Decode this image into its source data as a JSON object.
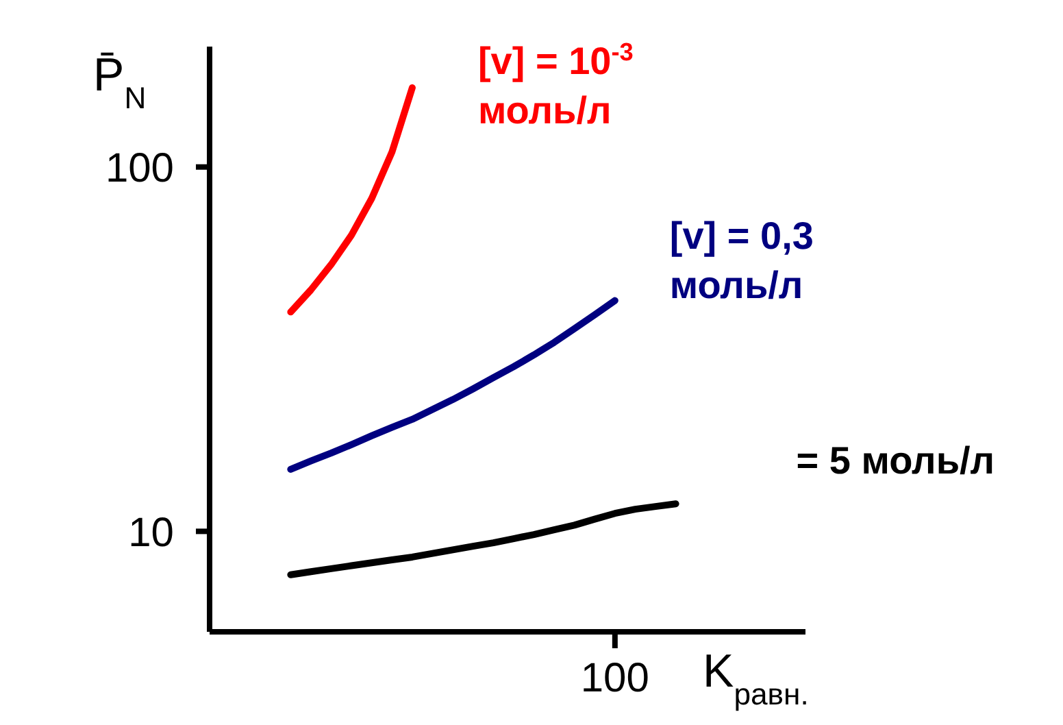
{
  "chart_data": {
    "type": "line",
    "log": "y",
    "xlabel": "K$_{равн.}$",
    "ylabel": "P̄$_{N}$",
    "categories": [
      null,
      null,
      null,
      null,
      null,
      null,
      null,
      null,
      null,
      null,
      null,
      null,
      null,
      null,
      null,
      null,
      null,
      null,
      null,
      null,
      "100",
      null,
      null,
      null,
      null,
      null,
      null,
      null,
      null,
      null
    ],
    "ylim": [
      5.3,
      214
    ],
    "yticks": [
      10,
      100
    ],
    "marker": "none",
    "line_style": "solid",
    "series": [
      {
        "name": "[v] = 10$^{-3}$ моль/л",
        "color": "#ff0000",
        "values": [
          null,
          null,
          null,
          null,
          40,
          46,
          54,
          65,
          82,
          110,
          165,
          null,
          null,
          null,
          null,
          null,
          null,
          null,
          null,
          null,
          null,
          null,
          null,
          null,
          null,
          null,
          null,
          null,
          null,
          null
        ]
      },
      {
        "name": "[v] = 0,3 моль/л",
        "color": "#000080",
        "values": [
          null,
          null,
          null,
          null,
          14.8,
          15.6,
          16.4,
          17.3,
          18.3,
          19.3,
          20.3,
          21.6,
          23,
          24.6,
          26.4,
          28.3,
          30.5,
          33,
          36,
          39.3,
          43,
          null,
          null,
          null,
          null,
          null,
          null,
          null,
          null,
          null
        ]
      },
      {
        "name": "= 5 моль/л",
        "color": "#000000",
        "values": [
          null,
          null,
          null,
          null,
          7.6,
          7.75,
          7.9,
          8.05,
          8.2,
          8.35,
          8.5,
          8.7,
          8.9,
          9.1,
          9.3,
          9.55,
          9.8,
          10.1,
          10.4,
          10.8,
          11.2,
          11.5,
          11.7,
          11.9,
          null,
          null,
          null,
          null,
          null,
          null
        ]
      }
    ]
  }
}
